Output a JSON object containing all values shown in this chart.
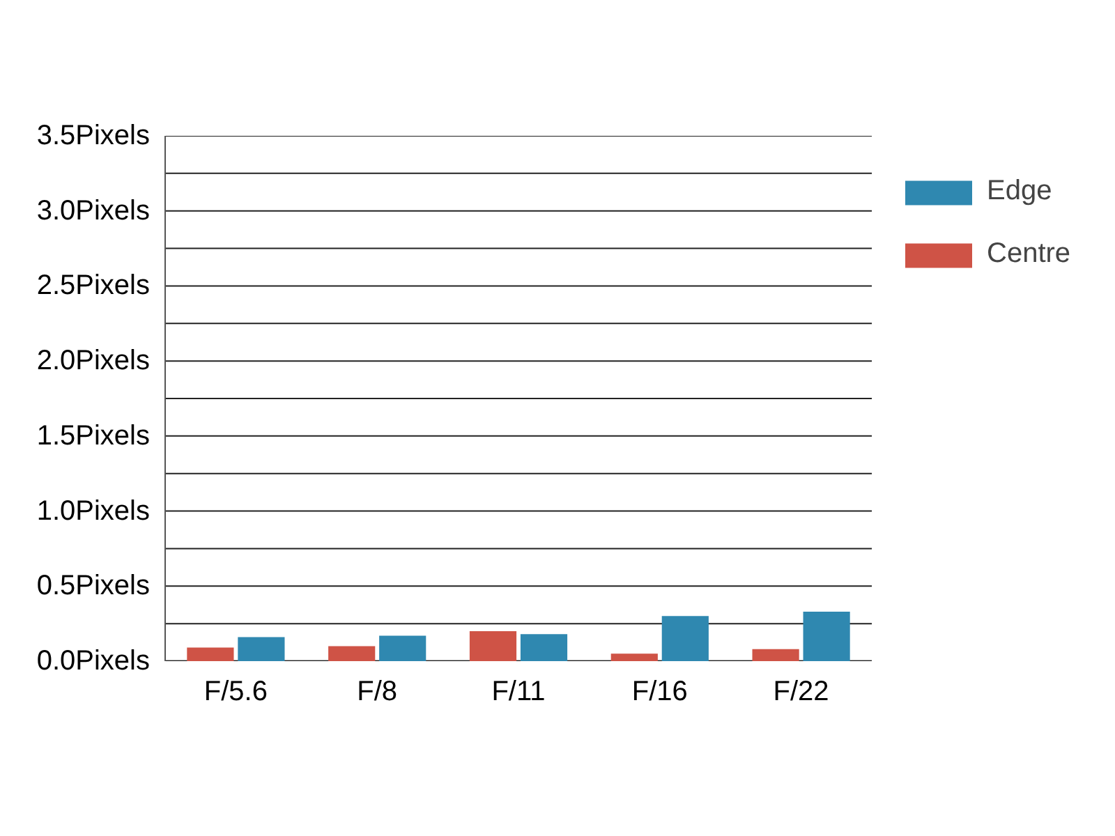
{
  "chart_data": {
    "type": "bar",
    "categories": [
      "F/5.6",
      "F/8",
      "F/11",
      "F/16",
      "F/22"
    ],
    "series": [
      {
        "name": "Centre",
        "color": "#cf5346",
        "values": [
          0.09,
          0.1,
          0.2,
          0.05,
          0.08
        ]
      },
      {
        "name": "Edge",
        "color": "#2f88b0",
        "values": [
          0.16,
          0.17,
          0.18,
          0.3,
          0.33
        ]
      }
    ],
    "ylim": [
      0,
      3.5
    ],
    "yticks": [
      {
        "value": 0,
        "label": "0.0Pixels"
      },
      {
        "value": 0.25,
        "label": null
      },
      {
        "value": 0.5,
        "label": "0.5Pixels"
      },
      {
        "value": 0.75,
        "label": null
      },
      {
        "value": 1,
        "label": "1.0Pixels"
      },
      {
        "value": 1.25,
        "label": null
      },
      {
        "value": 1.5,
        "label": "1.5Pixels"
      },
      {
        "value": 1.75,
        "label": null
      },
      {
        "value": 2,
        "label": "2.0Pixels"
      },
      {
        "value": 2.25,
        "label": null
      },
      {
        "value": 2.5,
        "label": "2.5Pixels"
      },
      {
        "value": 2.75,
        "label": null
      },
      {
        "value": 3,
        "label": "3.0Pixels"
      },
      {
        "value": 3.25,
        "label": null
      },
      {
        "value": 3.5,
        "label": "3.5Pixels"
      }
    ],
    "grid": "y",
    "legend": "top right"
  }
}
